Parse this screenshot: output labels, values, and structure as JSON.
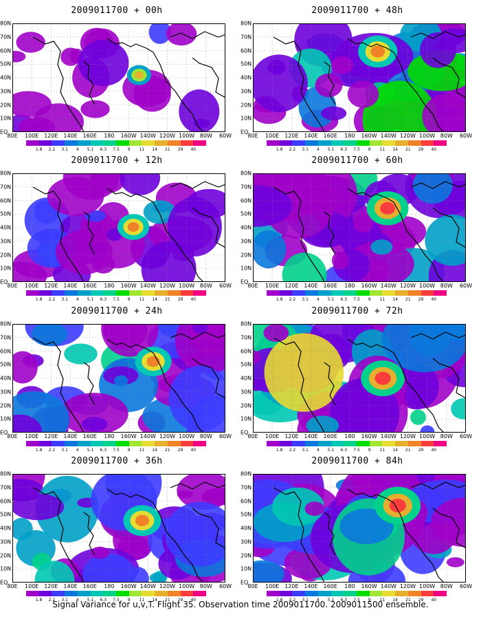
{
  "panels": [
    {
      "title": "2009011700 + 00h",
      "coverage": 0.2
    },
    {
      "title": "2009011700 + 12h",
      "coverage": 0.45
    },
    {
      "title": "2009011700 + 24h",
      "coverage": 0.6
    },
    {
      "title": "2009011700 + 36h",
      "coverage": 0.65
    },
    {
      "title": "2009011700 + 48h",
      "coverage": 0.7
    },
    {
      "title": "2009011700 + 60h",
      "coverage": 0.78
    },
    {
      "title": "2009011700 + 72h",
      "coverage": 0.85
    },
    {
      "title": "2009011700 + 84h",
      "coverage": 0.92
    }
  ],
  "lat_labels": [
    "80N",
    "70N",
    "60N",
    "50N",
    "40N",
    "30N",
    "20N",
    "10N",
    "EQ"
  ],
  "lon_labels": [
    "80E",
    "100E",
    "120E",
    "140E",
    "160E",
    "180",
    "160W",
    "140W",
    "120W",
    "100W",
    "80W",
    "60W"
  ],
  "colorbar": {
    "labels": [
      "1.8",
      "2.2",
      "3.1",
      "4",
      "5.1",
      "6.3",
      "7.5",
      "9",
      "11",
      "14",
      "21",
      "29",
      "40"
    ],
    "colors": [
      "#a000c8",
      "#6e00dc",
      "#3c3cff",
      "#0a78dc",
      "#00a0c8",
      "#00c8b4",
      "#00d28c",
      "#00dc00",
      "#a0e632",
      "#e6dc32",
      "#e6af2d",
      "#f08228",
      "#fa3c3c",
      "#f00082"
    ]
  },
  "caption": "Signal Variance for u,v,T. Flight 35. Observation time 2009011700. 2009011500 ensemble."
}
